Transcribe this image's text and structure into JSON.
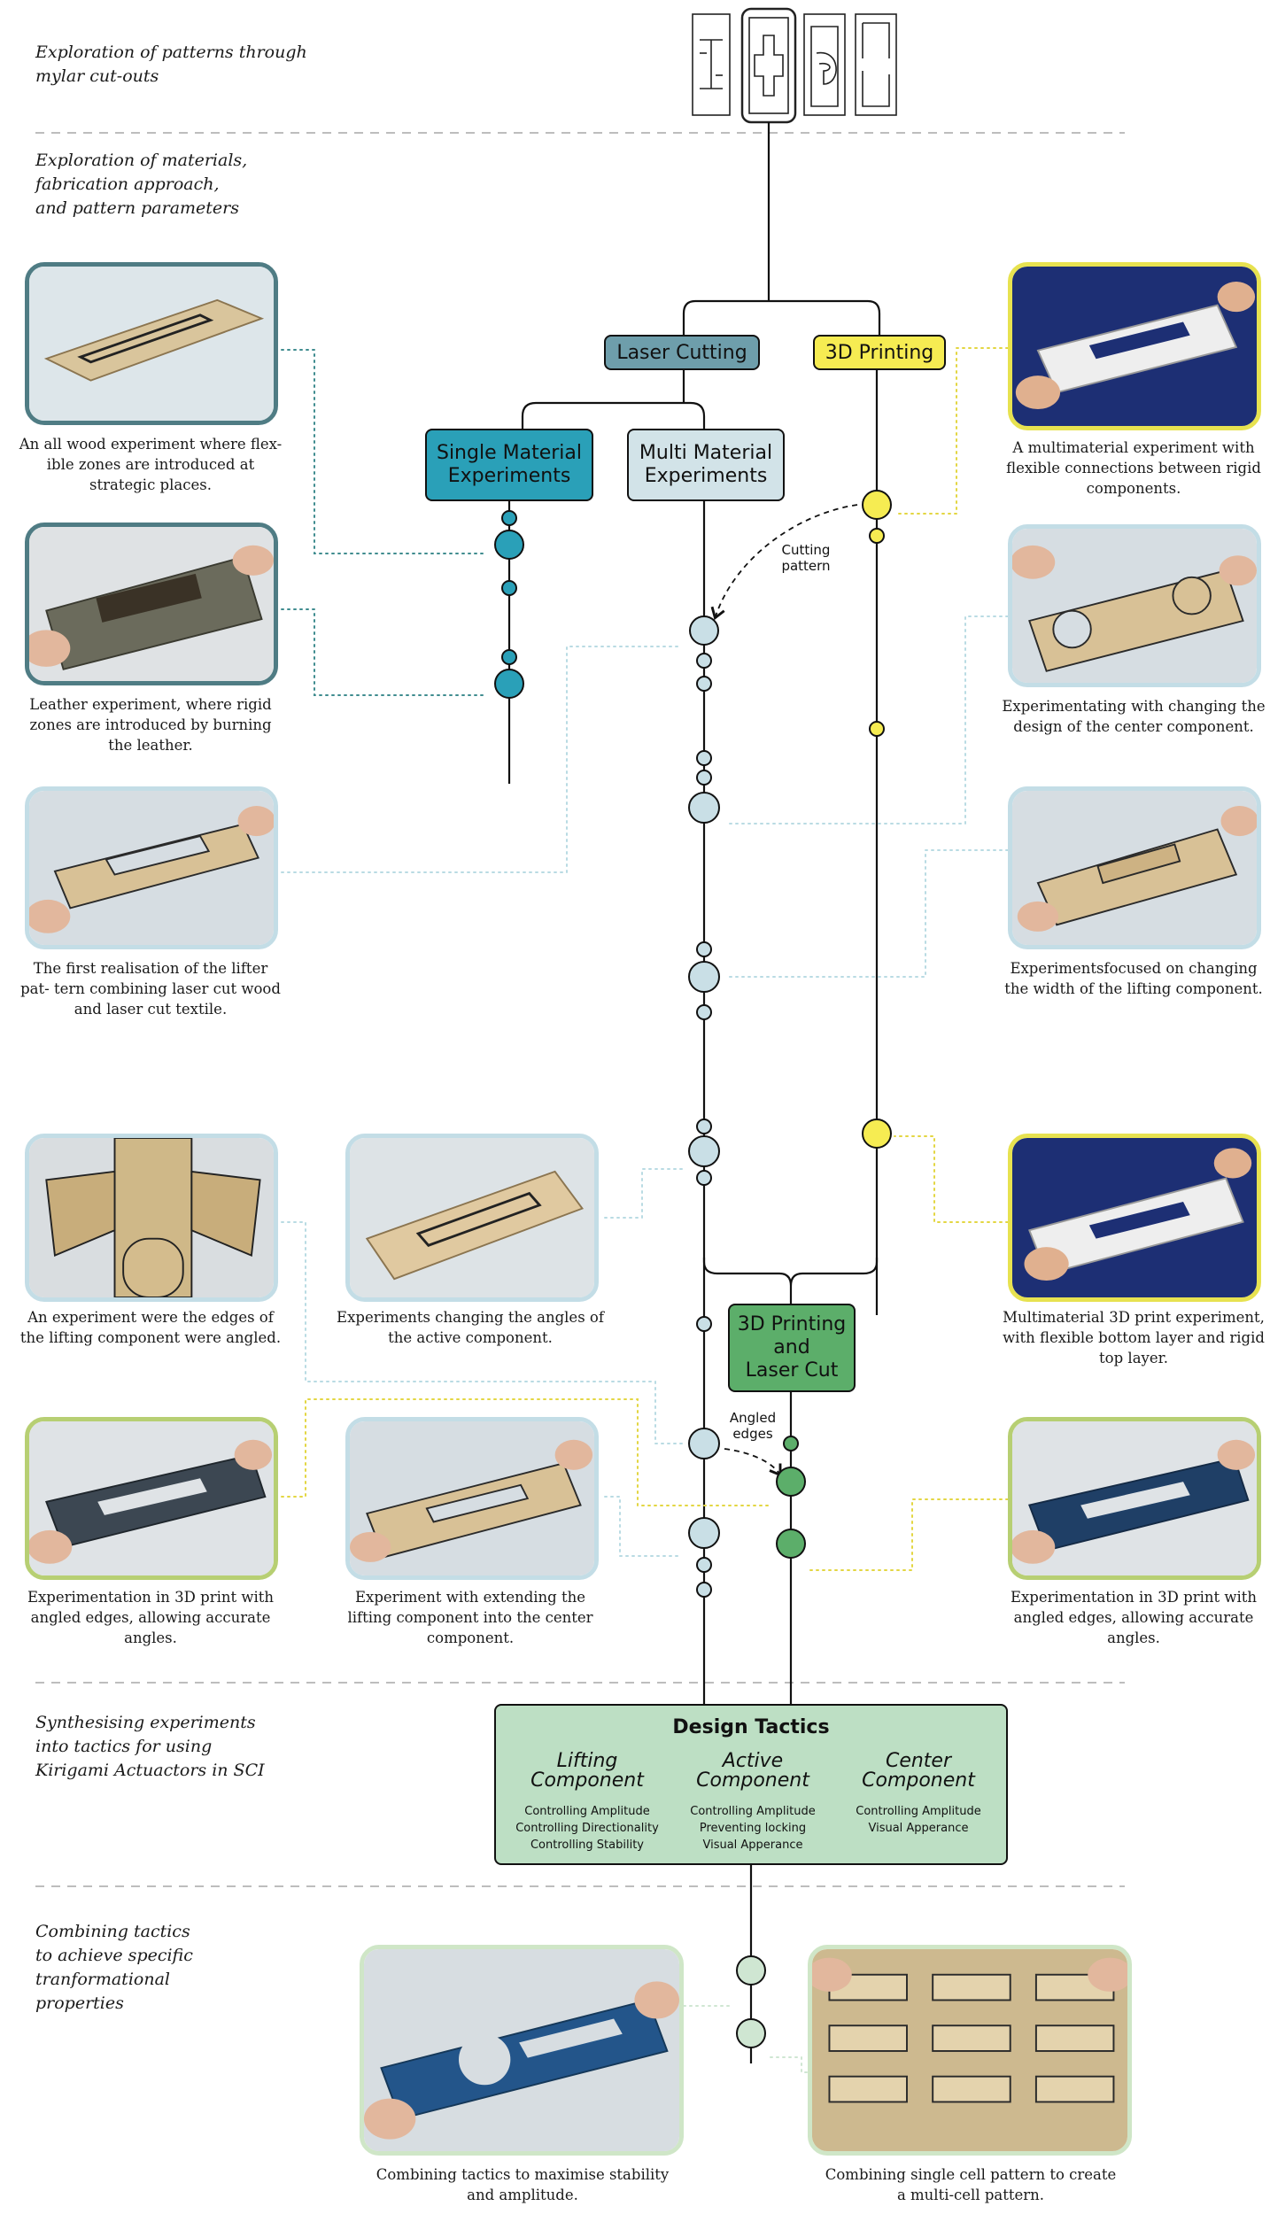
{
  "sections": [
    "Exploration of patterns through\nmylar cut-outs",
    "Exploration of materials,\nfabrication approach,\nand pattern parameters",
    "Synthesising experiments\ninto tactics for using\nKirigami Actuactors in SCI",
    "Combining tactics\nto achieve specific\ntranformational\nproperties"
  ],
  "nodes": {
    "laser_cutting": "Laser Cutting",
    "printing_3d": "3D Printing",
    "single_material": "Single Material\nExperiments",
    "multi_material": "Multi Material\nExperiments",
    "print_and_cut": "3D Printing\nand\nLaser Cut"
  },
  "annotations": {
    "cutting_pattern": "Cutting\npattern",
    "angled_edges": "Angled\nedges"
  },
  "design_tactics": {
    "title": "Design Tactics",
    "columns": [
      {
        "heading": "Lifting\nComponent",
        "items": [
          "Controlling Amplitude",
          "Controlling Directionality",
          "Controlling Stability"
        ]
      },
      {
        "heading": "Active\nComponent",
        "items": [
          "Controlling Amplitude",
          "Preventing locking",
          "Visual Apperance"
        ]
      },
      {
        "heading": "Center\nComponent",
        "items": [
          "Controlling Amplitude",
          "Visual Apperance"
        ]
      }
    ]
  },
  "photos": [
    {
      "caption": "An all wood experiment where flex-\nible zones are introduced at strategic\nplaces."
    },
    {
      "caption": "Leather experiment, where rigid\nzones are introduced by burning the\nleather."
    },
    {
      "caption": "The first realisation of the lifter pat-\ntern combining laser cut wood and\nlaser cut textile."
    },
    {
      "caption": "A multimaterial experiment with\nflexible connections between rigid\ncomponents."
    },
    {
      "caption": "Experimentating with changing the\ndesign of the center component."
    },
    {
      "caption": "Experimentsfocused on changing the\nwidth of the lifting component."
    },
    {
      "caption": "An experiment were the edges of the\nlifting component were angled."
    },
    {
      "caption": "Experiments changing the angles of\nthe active component."
    },
    {
      "caption": "Multimaterial 3D print experiment,\nwith flexible bottom layer and rigid\ntop layer."
    },
    {
      "caption": "Experimentation in 3D print  with\nangled edges, allowing accurate\nangles."
    },
    {
      "caption": "Experiment with extending the\nlifting component into the center\ncomponent."
    },
    {
      "caption": "Experimentation in 3D print  with\nangled edges, allowing accurate\nangles."
    },
    {
      "caption": "Combining tactics to maximise\nstability and amplitude."
    },
    {
      "caption": "Combining single cell pattern to\ncreate a multi-cell pattern."
    }
  ],
  "colors": {
    "teal_node": "#2aa0b8",
    "teal_frame": "#4f7c84",
    "yellow_node": "#f6ec52",
    "light_blue_node": "#c9dfe6",
    "green_node": "#5cae6a",
    "tactics_fill": "#bddfc4",
    "mint_node": "#cfe6d2",
    "laser_cutting_fill": "#6e9eab",
    "multi_material_fill": "#d2e3e8"
  }
}
